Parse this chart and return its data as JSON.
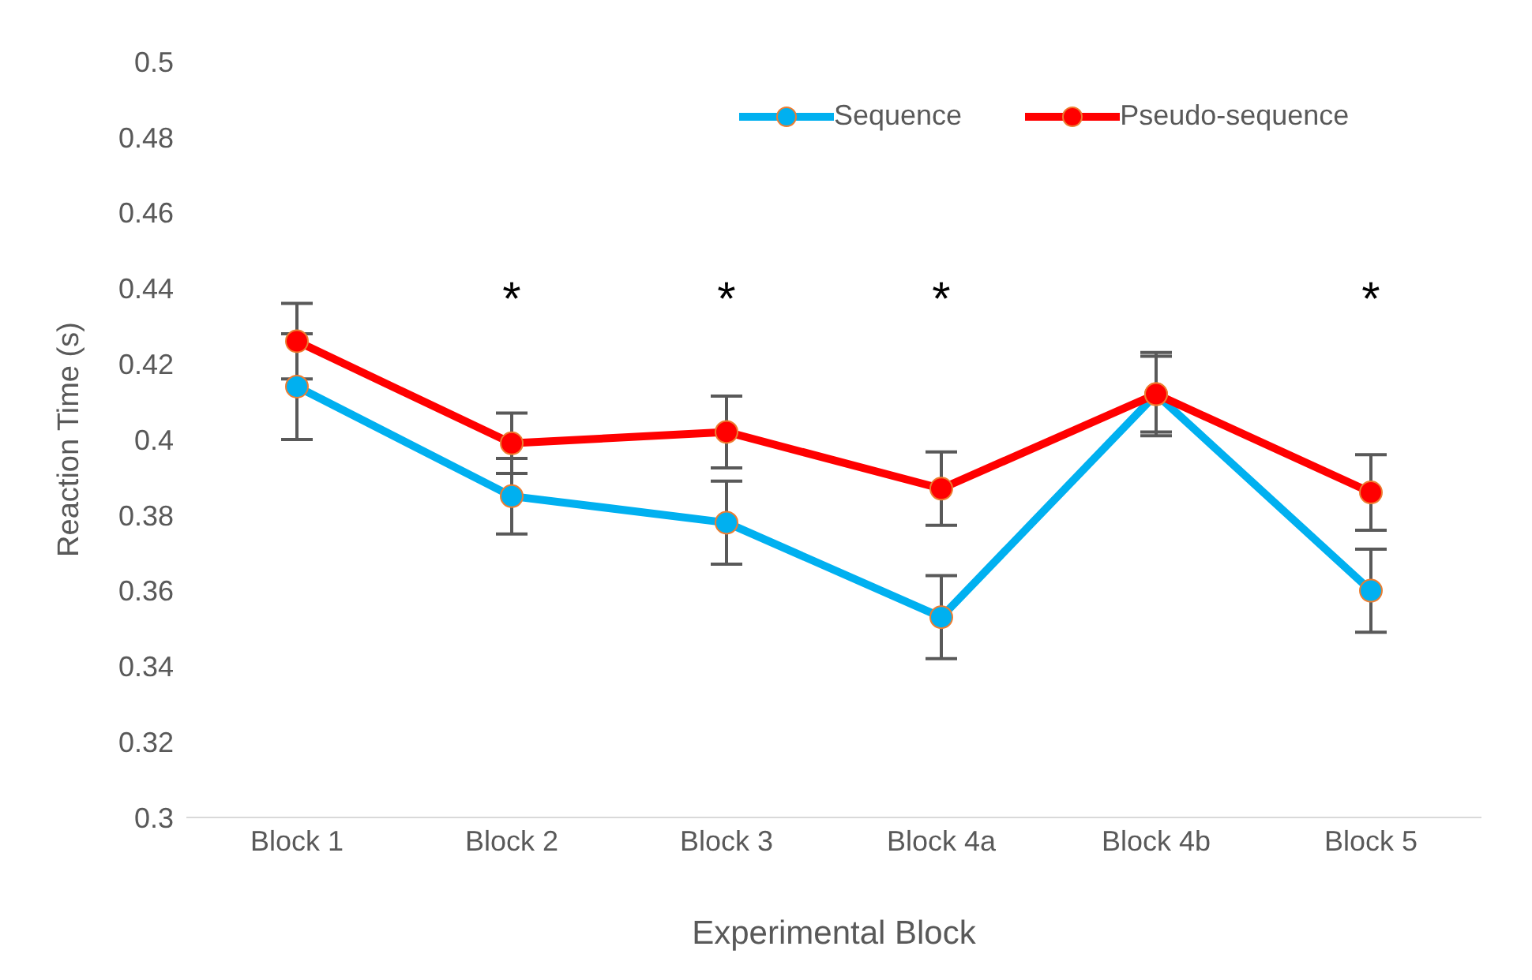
{
  "chart_data": {
    "type": "line",
    "xlabel": "Experimental Block",
    "ylabel": "Reaction Time (s)",
    "categories": [
      "Block 1",
      "Block 2",
      "Block 3",
      "Block 4a",
      "Block 4b",
      "Block 5"
    ],
    "series": [
      {
        "name": "Sequence",
        "color": "#00b0f0",
        "values": [
          0.414,
          0.385,
          0.378,
          0.353,
          0.412,
          0.36
        ],
        "errors": [
          0.014,
          0.01,
          0.011,
          0.011,
          0.011,
          0.011
        ]
      },
      {
        "name": "Pseudo-sequence",
        "color": "#ff0000",
        "values": [
          0.426,
          0.399,
          0.402,
          0.387,
          0.412,
          0.386
        ],
        "errors": [
          0.01,
          0.008,
          0.0095,
          0.0097,
          0.01,
          0.01
        ]
      }
    ],
    "ylim": [
      0.3,
      0.5
    ],
    "yticks": [
      0.3,
      0.32,
      0.34,
      0.36,
      0.38,
      0.4,
      0.42,
      0.44,
      0.46,
      0.48,
      0.5
    ],
    "annotations": [
      "*",
      "*",
      "*",
      "*"
    ],
    "legend": "top right",
    "marker": "circle",
    "line_style": "solid",
    "grid": false
  }
}
